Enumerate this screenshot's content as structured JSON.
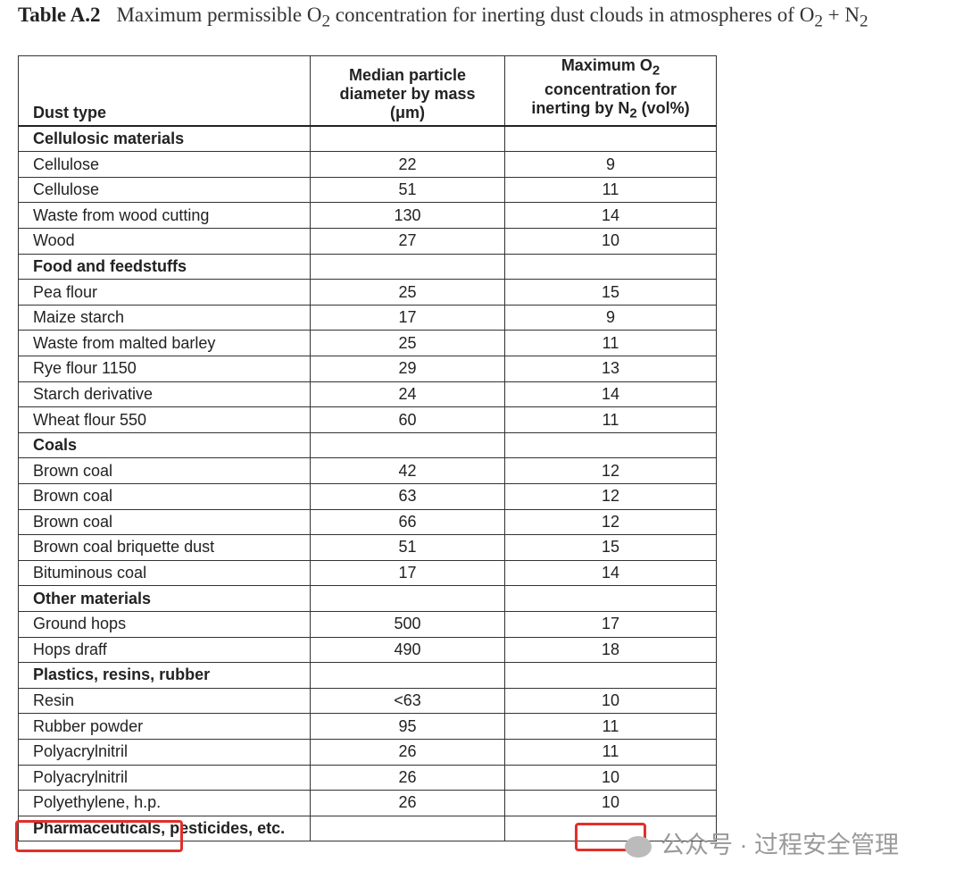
{
  "title": {
    "label": "Table A.2",
    "segments": [
      "Maximum permissible O",
      "2",
      " concentration for inerting dust clouds in atmospheres of O",
      "2",
      " + N",
      "2"
    ]
  },
  "table": {
    "headers": [
      {
        "segments": [
          "Dust type"
        ]
      },
      {
        "segments": [
          "Median particle diameter by mass (μm)"
        ]
      },
      {
        "segments": [
          "Maximum O",
          "2",
          " concentration for inerting by N",
          "2",
          " (vol%)"
        ]
      }
    ],
    "groups": [
      {
        "name": "Cellulosic materials",
        "rows": [
          [
            "Cellulose",
            22,
            9
          ],
          [
            "Cellulose",
            51,
            11
          ],
          [
            "Waste from wood cutting",
            130,
            14
          ],
          [
            "Wood",
            27,
            10
          ]
        ]
      },
      {
        "name": "Food and feedstuffs",
        "rows": [
          [
            "Pea flour",
            25,
            15
          ],
          [
            "Maize starch",
            17,
            9
          ],
          [
            "Waste from malted barley",
            25,
            11
          ],
          [
            "Rye flour 1150",
            29,
            13
          ],
          [
            "Starch derivative",
            24,
            14
          ],
          [
            "Wheat flour 550",
            60,
            11
          ]
        ]
      },
      {
        "name": "Coals",
        "rows": [
          [
            "Brown coal",
            42,
            12
          ],
          [
            "Brown coal",
            63,
            12
          ],
          [
            "Brown coal",
            66,
            12
          ],
          [
            "Brown coal briquette dust",
            51,
            15
          ],
          [
            "Bituminous coal",
            17,
            14
          ]
        ]
      },
      {
        "name": "Other materials",
        "rows": [
          [
            "Ground hops",
            500,
            17
          ],
          [
            "Hops draff",
            490,
            18
          ]
        ]
      },
      {
        "name": "Plastics, resins, rubber",
        "rows": [
          [
            "Resin",
            "<63",
            10
          ],
          [
            "Rubber powder",
            95,
            11
          ],
          [
            "Polyacrylnitril",
            26,
            11
          ],
          [
            "Polyacrylnitril",
            26,
            10
          ],
          [
            "Polyethylene, h.p.",
            26,
            10
          ]
        ]
      },
      {
        "name": "Pharmaceuticals, pesticides, etc.",
        "rows": []
      }
    ]
  },
  "watermark": "公众号 · 过程安全管理"
}
